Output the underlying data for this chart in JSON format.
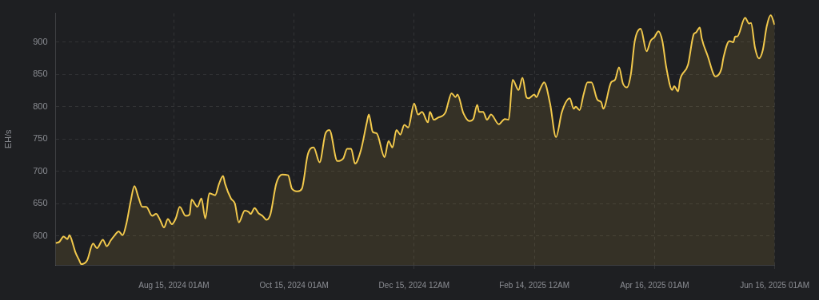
{
  "chart_data": {
    "type": "area",
    "ylabel": "EH/s",
    "grid": true,
    "legend": false,
    "marker": "none",
    "xlim": [
      "2024-06-16T00:00",
      "2025-06-16T01:00"
    ],
    "xticks": [
      {
        "value": "2024-08-15T01:00",
        "label": "Aug 15, 2024 01AM"
      },
      {
        "value": "2024-10-15T01:00",
        "label": "Oct 15, 2024 01AM"
      },
      {
        "value": "2024-12-15T00:00",
        "label": "Dec 15, 2024 12AM"
      },
      {
        "value": "2025-02-14T00:00",
        "label": "Feb 14, 2025 12AM"
      },
      {
        "value": "2025-04-16T01:00",
        "label": "Apr 16, 2025 01AM"
      },
      {
        "value": "2025-06-16T01:00",
        "label": "Jun 16, 2025 01AM"
      }
    ],
    "ylim": [
      555,
      945
    ],
    "yticks": [
      600,
      650,
      700,
      750,
      800,
      850,
      900
    ],
    "x": [
      "2024-06-16",
      "2024-06-18",
      "2024-06-20",
      "2024-06-22",
      "2024-06-23",
      "2024-06-25",
      "2024-06-26",
      "2024-06-28",
      "2024-06-29",
      "2024-07-02",
      "2024-07-05",
      "2024-07-07",
      "2024-07-10",
      "2024-07-12",
      "2024-07-14",
      "2024-07-16",
      "2024-07-18",
      "2024-07-20",
      "2024-07-22",
      "2024-07-24",
      "2024-07-26",
      "2024-07-28",
      "2024-07-30",
      "2024-08-01",
      "2024-08-04",
      "2024-08-06",
      "2024-08-08",
      "2024-08-10",
      "2024-08-12",
      "2024-08-14",
      "2024-08-16",
      "2024-08-18",
      "2024-08-21",
      "2024-08-23",
      "2024-08-24",
      "2024-08-27",
      "2024-08-29",
      "2024-08-31",
      "2024-09-02",
      "2024-09-05",
      "2024-09-07",
      "2024-09-09",
      "2024-09-10",
      "2024-09-13",
      "2024-09-15",
      "2024-09-17",
      "2024-09-20",
      "2024-09-22",
      "2024-09-23",
      "2024-09-25",
      "2024-09-27",
      "2024-09-29",
      "2024-10-01",
      "2024-10-03",
      "2024-10-06",
      "2024-10-09",
      "2024-10-12",
      "2024-10-14",
      "2024-10-17",
      "2024-10-19",
      "2024-10-22",
      "2024-10-25",
      "2024-10-28",
      "2024-10-31",
      "2024-11-02",
      "2024-11-06",
      "2024-11-09",
      "2024-11-11",
      "2024-11-13",
      "2024-11-15",
      "2024-11-18",
      "2024-11-21",
      "2024-11-22",
      "2024-11-24",
      "2024-11-26",
      "2024-11-30",
      "2024-12-02",
      "2024-12-04",
      "2024-12-06",
      "2024-12-08",
      "2024-12-10",
      "2024-12-12",
      "2024-12-15",
      "2024-12-17",
      "2024-12-19",
      "2024-12-22",
      "2024-12-23",
      "2024-12-25",
      "2024-12-27",
      "2024-12-31",
      "2025-01-01",
      "2025-01-03",
      "2025-01-05",
      "2025-01-06",
      "2025-01-09",
      "2025-01-12",
      "2025-01-14",
      "2025-01-16",
      "2025-01-17",
      "2025-01-19",
      "2025-01-21",
      "2025-01-23",
      "2025-01-27",
      "2025-01-30",
      "2025-02-01",
      "2025-02-03",
      "2025-02-06",
      "2025-02-08",
      "2025-02-10",
      "2025-02-11",
      "2025-02-14",
      "2025-02-15",
      "2025-02-17",
      "2025-02-19",
      "2025-02-22",
      "2025-02-25",
      "2025-02-28",
      "2025-03-04",
      "2025-03-06",
      "2025-03-07",
      "2025-03-09",
      "2025-03-11",
      "2025-03-13",
      "2025-03-15",
      "2025-03-18",
      "2025-03-20",
      "2025-03-21",
      "2025-03-25",
      "2025-03-27",
      "2025-03-29",
      "2025-03-31",
      "2025-04-02",
      "2025-04-04",
      "2025-04-06",
      "2025-04-09",
      "2025-04-12",
      "2025-04-14",
      "2025-04-16",
      "2025-04-18",
      "2025-04-20",
      "2025-04-22",
      "2025-04-25",
      "2025-04-26",
      "2025-04-28",
      "2025-04-29",
      "2025-05-03",
      "2025-05-06",
      "2025-05-07",
      "2025-05-09",
      "2025-05-10",
      "2025-05-13",
      "2025-05-17",
      "2025-05-20",
      "2025-05-21",
      "2025-05-24",
      "2025-05-26",
      "2025-05-27",
      "2025-05-28",
      "2025-06-01",
      "2025-06-03",
      "2025-06-04",
      "2025-06-06",
      "2025-06-08",
      "2025-06-10",
      "2025-06-12",
      "2025-06-14",
      "2025-06-16"
    ],
    "series": [
      {
        "color": "#f2c94c",
        "values": [
          589,
          591,
          599,
          595,
          601,
          585,
          575,
          562,
          556,
          562,
          588,
          581,
          594,
          584,
          593,
          601,
          607,
          601,
          620,
          652,
          677,
          660,
          645,
          645,
          631,
          634,
          625,
          613,
          626,
          618,
          627,
          645,
          631,
          633,
          656,
          645,
          658,
          627,
          666,
          663,
          681,
          693,
          681,
          658,
          650,
          621,
          639,
          637,
          634,
          643,
          635,
          631,
          625,
          633,
          681,
          695,
          694,
          673,
          669,
          673,
          726,
          737,
          714,
          759,
          764,
          716,
          720,
          735,
          735,
          712,
          733,
          776,
          788,
          761,
          759,
          722,
          747,
          737,
          764,
          757,
          772,
          768,
          805,
          788,
          792,
          776,
          792,
          780,
          783,
          792,
          803,
          821,
          815,
          819,
          790,
          778,
          781,
          803,
          792,
          792,
          780,
          788,
          773,
          781,
          780,
          842,
          826,
          845,
          815,
          813,
          819,
          815,
          828,
          838,
          805,
          753,
          792,
          813,
          797,
          800,
          795,
          819,
          838,
          838,
          811,
          807,
          797,
          838,
          842,
          861,
          836,
          830,
          850,
          902,
          921,
          886,
          902,
          908,
          917,
          902,
          861,
          826,
          832,
          824,
          842,
          865,
          913,
          915,
          923,
          906,
          879,
          847,
          859,
          876,
          902,
          900,
          909,
          909,
          938,
          929,
          930,
          892,
          875,
          888,
          925,
          942,
          927
        ]
      }
    ]
  }
}
